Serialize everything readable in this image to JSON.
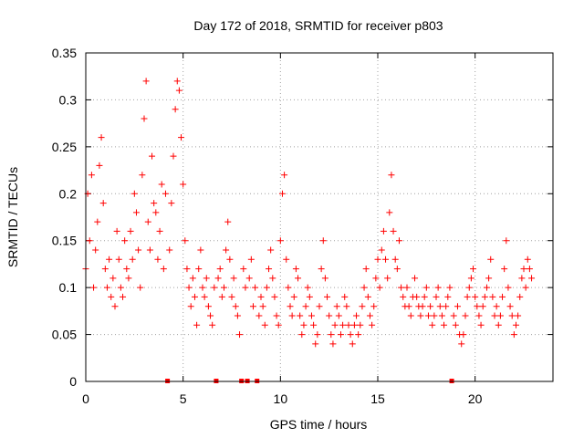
{
  "chart_data": {
    "type": "scatter",
    "title": "Day 172 of 2018, SRMTID for receiver p803",
    "xlabel": "GPS time / hours",
    "ylabel": "SRMTID / TECUs",
    "xlim": [
      0,
      24
    ],
    "ylim": [
      0,
      0.35
    ],
    "xticks": [
      0,
      5,
      10,
      15,
      20
    ],
    "xtick_labels": [
      "0",
      "5",
      "10",
      "15",
      "20"
    ],
    "yticks": [
      0,
      0.05,
      0.1,
      0.15,
      0.2,
      0.25,
      0.3,
      0.35
    ],
    "ytick_labels": [
      "0",
      "0.05",
      "0.1",
      "0.15",
      "0.2",
      "0.25",
      "0.3",
      "0.35"
    ],
    "grid": true,
    "marker": "+",
    "color": "#ff0000",
    "data_gap_hours": [
      4.2,
      6.7,
      8.0,
      8.3,
      8.8,
      18.8
    ],
    "series": [
      {
        "name": "SRMTID",
        "x": [
          0.0,
          0.1,
          0.2,
          0.3,
          0.4,
          0.5,
          0.6,
          0.7,
          0.8,
          0.9,
          1.0,
          1.1,
          1.2,
          1.3,
          1.4,
          1.5,
          1.6,
          1.7,
          1.8,
          1.9,
          2.0,
          2.1,
          2.2,
          2.3,
          2.4,
          2.5,
          2.6,
          2.7,
          2.8,
          2.9,
          3.0,
          3.1,
          3.2,
          3.3,
          3.4,
          3.5,
          3.6,
          3.7,
          3.8,
          3.9,
          4.0,
          4.1,
          4.3,
          4.4,
          4.5,
          4.6,
          4.7,
          4.8,
          4.9,
          5.0,
          5.1,
          5.2,
          5.3,
          5.4,
          5.5,
          5.6,
          5.7,
          5.8,
          5.9,
          6.0,
          6.1,
          6.2,
          6.3,
          6.4,
          6.5,
          6.6,
          6.8,
          6.9,
          7.0,
          7.1,
          7.2,
          7.3,
          7.4,
          7.5,
          7.6,
          7.7,
          7.8,
          7.9,
          8.1,
          8.2,
          8.4,
          8.5,
          8.6,
          8.7,
          8.9,
          9.0,
          9.1,
          9.2,
          9.3,
          9.4,
          9.5,
          9.6,
          9.7,
          9.8,
          9.9,
          10.0,
          10.1,
          10.2,
          10.3,
          10.4,
          10.5,
          10.6,
          10.7,
          10.8,
          10.9,
          11.0,
          11.1,
          11.2,
          11.3,
          11.4,
          11.5,
          11.6,
          11.7,
          11.8,
          11.9,
          12.0,
          12.1,
          12.2,
          12.3,
          12.4,
          12.5,
          12.6,
          12.7,
          12.8,
          12.9,
          13.0,
          13.1,
          13.2,
          13.3,
          13.4,
          13.5,
          13.6,
          13.7,
          13.8,
          13.9,
          14.0,
          14.1,
          14.2,
          14.3,
          14.4,
          14.5,
          14.6,
          14.7,
          14.8,
          14.9,
          15.0,
          15.1,
          15.2,
          15.3,
          15.4,
          15.5,
          15.6,
          15.7,
          15.8,
          15.9,
          16.0,
          16.1,
          16.2,
          16.3,
          16.4,
          16.5,
          16.6,
          16.7,
          16.8,
          16.9,
          17.0,
          17.1,
          17.2,
          17.3,
          17.4,
          17.5,
          17.6,
          17.7,
          17.8,
          17.9,
          18.0,
          18.1,
          18.2,
          18.3,
          18.4,
          18.5,
          18.6,
          18.7,
          18.9,
          19.0,
          19.1,
          19.2,
          19.3,
          19.4,
          19.5,
          19.6,
          19.7,
          19.8,
          19.9,
          20.0,
          20.1,
          20.2,
          20.3,
          20.4,
          20.5,
          20.6,
          20.7,
          20.8,
          20.9,
          21.0,
          21.1,
          21.2,
          21.3,
          21.4,
          21.5,
          21.6,
          21.7,
          21.8,
          21.9,
          22.0,
          22.1,
          22.2,
          22.3,
          22.4,
          22.5,
          22.6,
          22.7,
          22.8,
          22.9
        ],
        "values": [
          0.12,
          0.2,
          0.15,
          0.22,
          0.1,
          0.14,
          0.17,
          0.23,
          0.26,
          0.19,
          0.12,
          0.1,
          0.13,
          0.09,
          0.11,
          0.08,
          0.16,
          0.13,
          0.1,
          0.09,
          0.15,
          0.12,
          0.11,
          0.16,
          0.13,
          0.2,
          0.18,
          0.14,
          0.1,
          0.22,
          0.28,
          0.32,
          0.17,
          0.14,
          0.24,
          0.19,
          0.18,
          0.13,
          0.16,
          0.21,
          0.12,
          0.2,
          0.14,
          0.19,
          0.24,
          0.29,
          0.32,
          0.31,
          0.26,
          0.21,
          0.15,
          0.12,
          0.1,
          0.08,
          0.11,
          0.09,
          0.06,
          0.12,
          0.14,
          0.1,
          0.09,
          0.11,
          0.08,
          0.07,
          0.06,
          0.1,
          0.11,
          0.12,
          0.09,
          0.1,
          0.14,
          0.17,
          0.13,
          0.09,
          0.11,
          0.08,
          0.07,
          0.05,
          0.12,
          0.1,
          0.11,
          0.13,
          0.08,
          0.1,
          0.07,
          0.09,
          0.08,
          0.06,
          0.1,
          0.12,
          0.14,
          0.11,
          0.09,
          0.07,
          0.06,
          0.15,
          0.2,
          0.22,
          0.13,
          0.1,
          0.08,
          0.07,
          0.09,
          0.12,
          0.11,
          0.07,
          0.05,
          0.06,
          0.08,
          0.1,
          0.09,
          0.07,
          0.06,
          0.04,
          0.05,
          0.08,
          0.12,
          0.15,
          0.11,
          0.09,
          0.07,
          0.05,
          0.04,
          0.06,
          0.08,
          0.07,
          0.05,
          0.06,
          0.09,
          0.08,
          0.06,
          0.05,
          0.04,
          0.06,
          0.07,
          0.05,
          0.06,
          0.08,
          0.1,
          0.12,
          0.09,
          0.07,
          0.06,
          0.08,
          0.11,
          0.13,
          0.1,
          0.14,
          0.16,
          0.13,
          0.11,
          0.18,
          0.22,
          0.16,
          0.13,
          0.12,
          0.15,
          0.1,
          0.09,
          0.08,
          0.1,
          0.08,
          0.07,
          0.09,
          0.11,
          0.09,
          0.08,
          0.07,
          0.08,
          0.09,
          0.1,
          0.07,
          0.08,
          0.06,
          0.07,
          0.09,
          0.1,
          0.08,
          0.07,
          0.06,
          0.08,
          0.09,
          0.1,
          0.07,
          0.06,
          0.08,
          0.05,
          0.04,
          0.05,
          0.07,
          0.09,
          0.1,
          0.11,
          0.12,
          0.09,
          0.08,
          0.07,
          0.06,
          0.08,
          0.09,
          0.1,
          0.11,
          0.13,
          0.09,
          0.07,
          0.08,
          0.06,
          0.07,
          0.09,
          0.12,
          0.15,
          0.1,
          0.08,
          0.07,
          0.05,
          0.06,
          0.07,
          0.09,
          0.11,
          0.12,
          0.1,
          0.13,
          0.12,
          0.11
        ]
      }
    ]
  }
}
